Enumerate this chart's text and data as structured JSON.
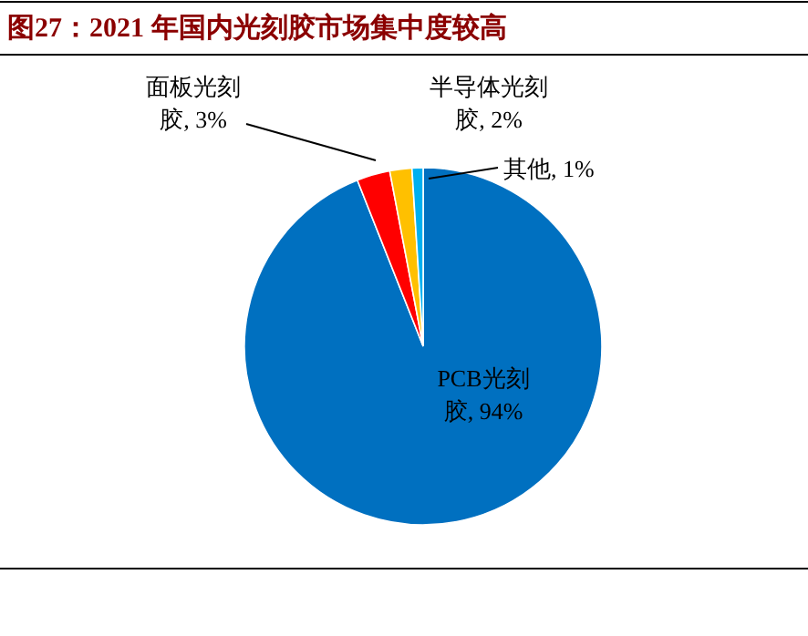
{
  "chart_data": {
    "type": "pie",
    "title": "图27：2021 年国内光刻胶市场集中度较高",
    "categories": [
      "PCB光刻胶",
      "面板光刻胶",
      "半导体光刻胶",
      "其他"
    ],
    "values": [
      94,
      3,
      2,
      1
    ],
    "value_labels": [
      "94%",
      "3%",
      "2%",
      "1%"
    ],
    "colors": [
      "#0070c0",
      "#ff0000",
      "#ffc000",
      "#00b0f0"
    ]
  }
}
